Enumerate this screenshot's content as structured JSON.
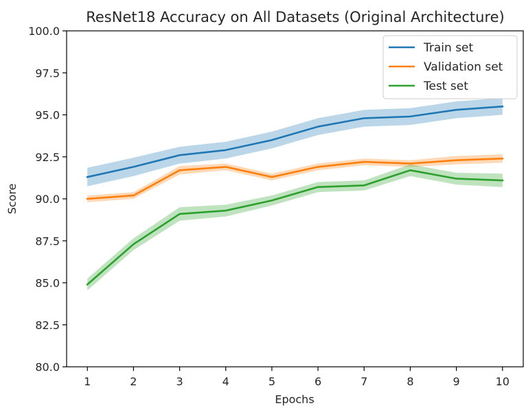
{
  "chart_data": {
    "type": "line",
    "title": "ResNet18 Accuracy on All Datasets (Original Architecture)",
    "xlabel": "Epochs",
    "ylabel": "Score",
    "x": [
      1,
      2,
      3,
      4,
      5,
      6,
      7,
      8,
      9,
      10
    ],
    "xlim": [
      0.55,
      10.45
    ],
    "ylim": [
      80.0,
      100.0
    ],
    "yticks": [
      80.0,
      82.5,
      85.0,
      87.5,
      90.0,
      92.5,
      95.0,
      97.5,
      100.0
    ],
    "ytick_labels": [
      "80.0",
      "82.5",
      "85.0",
      "87.5",
      "90.0",
      "92.5",
      "95.0",
      "97.5",
      "100.0"
    ],
    "xtick_labels": [
      "1",
      "2",
      "3",
      "4",
      "5",
      "6",
      "7",
      "8",
      "9",
      "10"
    ],
    "grid": false,
    "legend_position": "top-right",
    "series": [
      {
        "name": "Train set",
        "color": "#1f77b4",
        "values": [
          91.3,
          91.9,
          92.6,
          92.9,
          93.5,
          94.3,
          94.8,
          94.9,
          95.3,
          95.5
        ],
        "band_halfwidth": [
          0.55,
          0.55,
          0.5,
          0.5,
          0.5,
          0.5,
          0.5,
          0.5,
          0.5,
          0.5
        ]
      },
      {
        "name": "Validation set",
        "color": "#ff7f0e",
        "values": [
          90.0,
          90.2,
          91.7,
          91.9,
          91.3,
          91.9,
          92.2,
          92.1,
          92.3,
          92.4
        ],
        "band_halfwidth": [
          0.2,
          0.2,
          0.25,
          0.2,
          0.2,
          0.2,
          0.2,
          0.2,
          0.25,
          0.25
        ]
      },
      {
        "name": "Test set",
        "color": "#2ca02c",
        "values": [
          84.9,
          87.3,
          89.1,
          89.3,
          89.9,
          90.7,
          90.8,
          91.7,
          91.2,
          91.1
        ],
        "band_halfwidth": [
          0.35,
          0.35,
          0.4,
          0.35,
          0.3,
          0.3,
          0.3,
          0.35,
          0.35,
          0.4
        ]
      }
    ]
  }
}
